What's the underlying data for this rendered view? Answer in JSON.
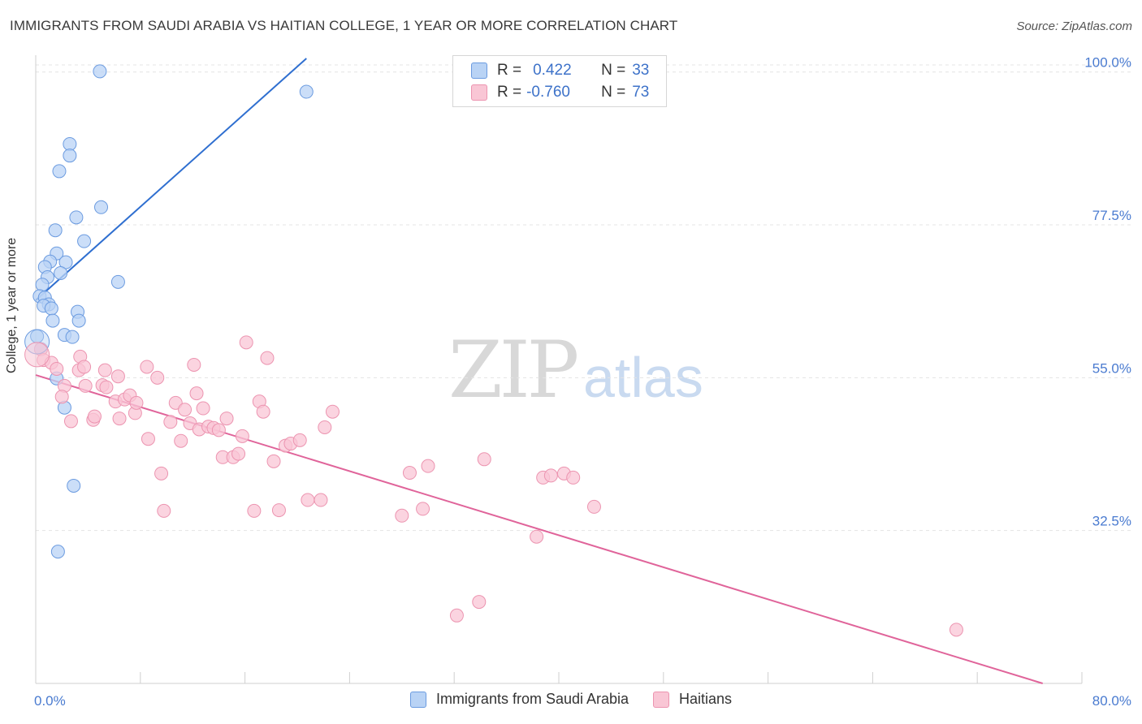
{
  "title": "IMMIGRANTS FROM SAUDI ARABIA VS HAITIAN COLLEGE, 1 YEAR OR MORE CORRELATION CHART",
  "source": "Source: ZipAtlas.com",
  "watermark": {
    "zip": "ZIP",
    "atlas": "atlas"
  },
  "legend": {
    "rows": [
      {
        "r_label": "R =",
        "r_value": "0.422",
        "n_label": "N =",
        "n_value": "33",
        "fill": "#b9d3f5",
        "stroke": "#6b9be0"
      },
      {
        "r_label": "R =",
        "r_value": "-0.760",
        "n_label": "N =",
        "n_value": "73",
        "fill": "#f9c6d5",
        "stroke": "#ec94b0"
      }
    ]
  },
  "chart_data": {
    "type": "scatter",
    "xlabel": "",
    "ylabel": "College, 1 year or more",
    "xlim": [
      0,
      80
    ],
    "ylim": [
      10,
      102
    ],
    "x_tick_labels": [
      "0.0%",
      "80.0%"
    ],
    "y_ticks": [
      32.5,
      55.0,
      77.5,
      100.0
    ],
    "y_tick_labels": [
      "32.5%",
      "55.0%",
      "77.5%",
      "100.0%"
    ],
    "grid": true,
    "series": [
      {
        "name": "Immigrants from Saudi Arabia",
        "color": "#6b9be0",
        "fill": "#b9d3f5",
        "trend": {
          "x": [
            0.0,
            20.7
          ],
          "y": [
            66.4,
            102.0
          ],
          "color": "#2f6fd0"
        },
        "points": [
          [
            4.9,
            100.1
          ],
          [
            20.7,
            97.1
          ],
          [
            2.6,
            89.4
          ],
          [
            2.6,
            87.7
          ],
          [
            1.8,
            85.4
          ],
          [
            5.0,
            80.1
          ],
          [
            3.1,
            78.6
          ],
          [
            1.5,
            76.7
          ],
          [
            3.7,
            75.1
          ],
          [
            1.6,
            73.3
          ],
          [
            1.1,
            72.1
          ],
          [
            2.3,
            72.0
          ],
          [
            0.7,
            71.3
          ],
          [
            1.9,
            70.4
          ],
          [
            6.3,
            69.1
          ],
          [
            0.9,
            69.8
          ],
          [
            0.5,
            68.7
          ],
          [
            0.3,
            67.0
          ],
          [
            0.7,
            66.8
          ],
          [
            1.0,
            65.8
          ],
          [
            0.6,
            65.6
          ],
          [
            1.2,
            65.2
          ],
          [
            3.2,
            64.7
          ],
          [
            3.3,
            63.4
          ],
          [
            1.3,
            63.4
          ],
          [
            2.2,
            61.3
          ],
          [
            2.8,
            61.0
          ],
          [
            0.1,
            61.1
          ],
          [
            0.4,
            59.2
          ],
          [
            1.6,
            54.9
          ],
          [
            2.2,
            50.6
          ],
          [
            2.9,
            39.1
          ],
          [
            1.7,
            29.4
          ]
        ]
      },
      {
        "name": "Haitians",
        "color": "#ec94b0",
        "fill": "#f9c6d5",
        "trend": {
          "x": [
            0.0,
            77.0
          ],
          "y": [
            55.4,
            10.0
          ],
          "color": "#e0649a"
        },
        "points": [
          [
            0.4,
            59.2
          ],
          [
            0.6,
            57.6
          ],
          [
            1.2,
            57.2
          ],
          [
            1.6,
            56.3
          ],
          [
            2.2,
            53.8
          ],
          [
            2.0,
            52.2
          ],
          [
            2.7,
            48.6
          ],
          [
            3.3,
            56.1
          ],
          [
            3.4,
            58.1
          ],
          [
            3.7,
            56.6
          ],
          [
            3.8,
            53.8
          ],
          [
            4.4,
            48.8
          ],
          [
            4.5,
            49.3
          ],
          [
            5.1,
            53.9
          ],
          [
            5.3,
            56.1
          ],
          [
            5.4,
            53.6
          ],
          [
            6.1,
            51.5
          ],
          [
            6.3,
            55.2
          ],
          [
            6.4,
            49.0
          ],
          [
            6.8,
            51.8
          ],
          [
            7.2,
            52.4
          ],
          [
            7.6,
            49.8
          ],
          [
            7.7,
            51.3
          ],
          [
            8.5,
            56.6
          ],
          [
            8.6,
            46.0
          ],
          [
            9.3,
            55.0
          ],
          [
            9.6,
            40.9
          ],
          [
            9.8,
            35.4
          ],
          [
            10.3,
            48.5
          ],
          [
            10.7,
            51.3
          ],
          [
            11.1,
            45.7
          ],
          [
            11.4,
            50.3
          ],
          [
            11.8,
            48.3
          ],
          [
            12.1,
            56.9
          ],
          [
            12.3,
            52.7
          ],
          [
            12.5,
            47.4
          ],
          [
            12.8,
            50.5
          ],
          [
            13.2,
            47.8
          ],
          [
            13.6,
            47.6
          ],
          [
            14.0,
            47.3
          ],
          [
            14.3,
            43.3
          ],
          [
            14.6,
            49.0
          ],
          [
            15.1,
            43.3
          ],
          [
            15.5,
            43.8
          ],
          [
            15.8,
            46.4
          ],
          [
            16.1,
            60.2
          ],
          [
            16.7,
            35.4
          ],
          [
            17.1,
            51.5
          ],
          [
            17.4,
            50.0
          ],
          [
            17.7,
            57.9
          ],
          [
            18.2,
            42.7
          ],
          [
            18.6,
            35.5
          ],
          [
            19.1,
            45.0
          ],
          [
            19.5,
            45.3
          ],
          [
            20.2,
            45.8
          ],
          [
            20.8,
            37.0
          ],
          [
            21.8,
            37.0
          ],
          [
            22.1,
            47.7
          ],
          [
            22.7,
            50.0
          ],
          [
            28.0,
            34.7
          ],
          [
            28.6,
            41.0
          ],
          [
            29.6,
            35.7
          ],
          [
            30.0,
            42.0
          ],
          [
            32.2,
            20.0
          ],
          [
            33.9,
            22.0
          ],
          [
            34.3,
            43.0
          ],
          [
            38.3,
            31.6
          ],
          [
            38.8,
            40.3
          ],
          [
            39.4,
            40.6
          ],
          [
            40.4,
            40.9
          ],
          [
            41.1,
            40.3
          ],
          [
            42.7,
            36.0
          ],
          [
            70.4,
            17.9
          ]
        ]
      }
    ]
  }
}
